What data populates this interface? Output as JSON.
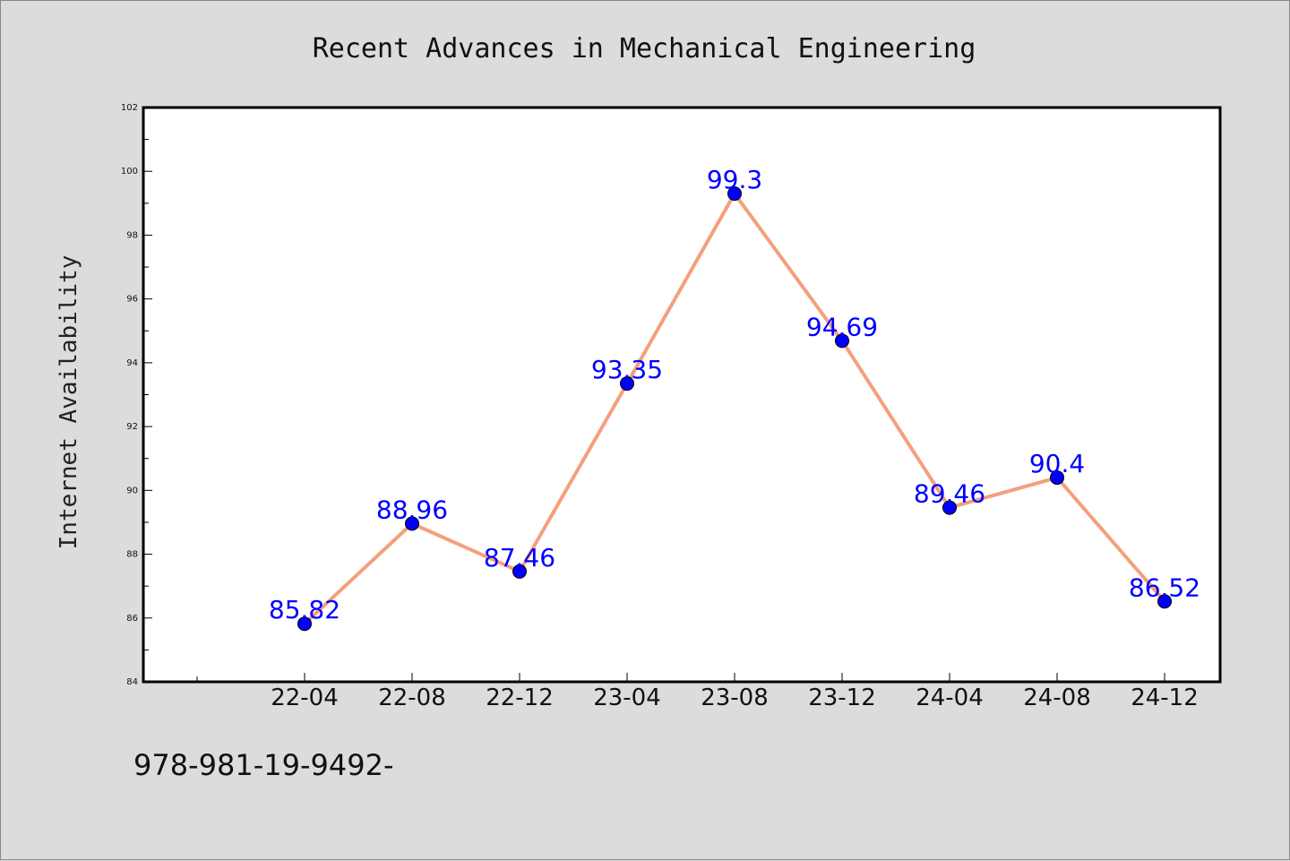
{
  "chart_data": {
    "type": "line",
    "title": "Recent Advances in Mechanical Engineering",
    "xlabel": "",
    "ylabel": "Internet Availability",
    "categories": [
      "22-04",
      "22-08",
      "22-12",
      "23-04",
      "23-08",
      "23-12",
      "24-04",
      "24-08",
      "24-12"
    ],
    "series": [
      {
        "values": [
          85.82,
          88.96,
          87.46,
          93.35,
          99.3,
          94.69,
          89.46,
          90.4,
          86.52
        ],
        "labels": [
          "85.82",
          "88.96",
          "87.46",
          "93.35",
          "99.3",
          "94.69",
          "89.46",
          "90.4",
          "86.52"
        ],
        "line_color": "#f4a07c",
        "marker_color": "#0000ff"
      }
    ],
    "ylim": [
      84,
      102
    ],
    "yticks": [
      "84",
      "86",
      "88",
      "90",
      "92",
      "94",
      "96",
      "98",
      "100",
      "102"
    ],
    "grid": false,
    "legend": "none"
  },
  "footer": {
    "text": "978-981-19-9492-"
  }
}
